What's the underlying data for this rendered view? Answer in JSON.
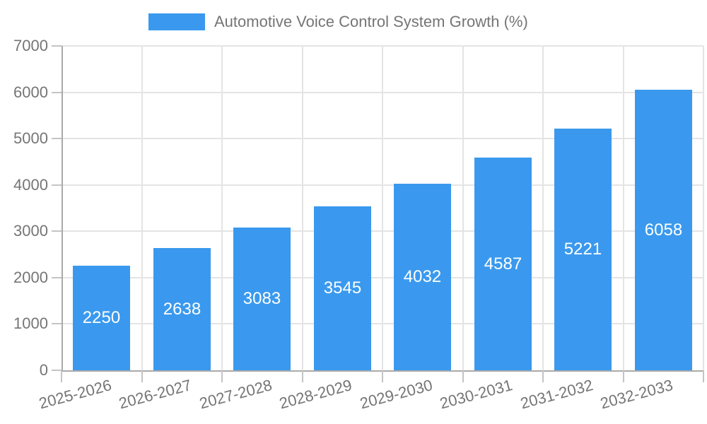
{
  "legend": {
    "label": "Automotive Voice Control System Growth (%)"
  },
  "chart_data": {
    "type": "bar",
    "title": "Automotive Voice Control System Growth (%)",
    "categories": [
      "2025-2026",
      "2026-2027",
      "2027-2028",
      "2028-2029",
      "2029-2030",
      "2030-2031",
      "2031-2032",
      "2032-2033"
    ],
    "values": [
      2250,
      2638,
      3083,
      3545,
      4032,
      4587,
      5221,
      6058
    ],
    "series": [
      {
        "name": "Automotive Voice Control System Growth (%)",
        "values": [
          2250,
          2638,
          3083,
          3545,
          4032,
          4587,
          5221,
          6058
        ]
      }
    ],
    "xlabel": "",
    "ylabel": "",
    "ylim": [
      0,
      7000
    ],
    "yticks": [
      0,
      1000,
      2000,
      3000,
      4000,
      5000,
      6000,
      7000
    ],
    "grid": true,
    "grid_vertical": true,
    "legend_position": "top",
    "x_label_rotation_deg": -15,
    "bar_labels_inside": true,
    "colors": {
      "bar": "#3a99ee",
      "bar_value_label": "#ffffff",
      "axis_text": "#757575",
      "gridline": "#e4e4e4",
      "axis_line": "#aaaaaa",
      "tick": "#c4c4c4",
      "background": "#ffffff"
    }
  }
}
